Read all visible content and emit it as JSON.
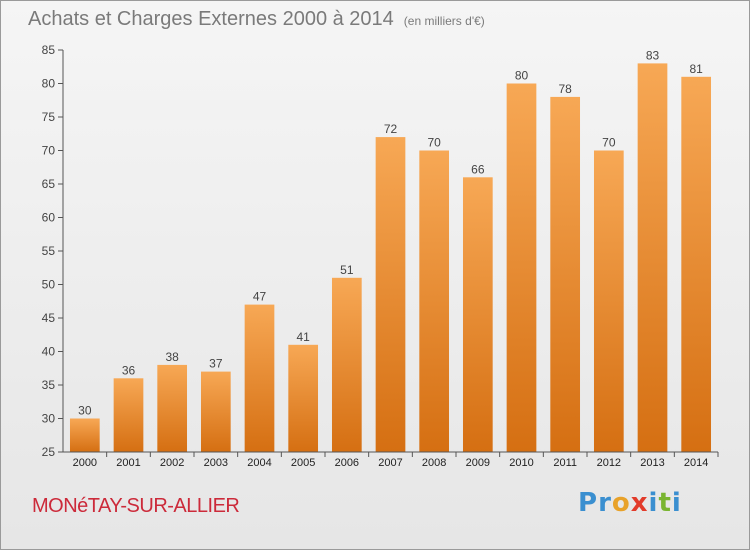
{
  "title": "Achats et Charges Externes 2000 à 2014",
  "unit_note": "(en milliers d'€)",
  "subject": "MONéTAY-SUR-ALLIER",
  "brand": {
    "letters": [
      "P",
      "r",
      "o",
      "x",
      "i",
      "t",
      "i"
    ],
    "colors": [
      "#3a8fd0",
      "#3a8fd0",
      "#e8a22a",
      "#e23b2a",
      "#3a8fd0",
      "#7ab531",
      "#3a8fd0"
    ]
  },
  "chart_data": {
    "type": "bar",
    "categories": [
      "2000",
      "2001",
      "2002",
      "2003",
      "2004",
      "2005",
      "2006",
      "2007",
      "2008",
      "2009",
      "2010",
      "2011",
      "2012",
      "2013",
      "2014"
    ],
    "values": [
      30,
      36,
      38,
      37,
      47,
      41,
      51,
      72,
      70,
      66,
      80,
      78,
      70,
      83,
      81
    ],
    "data_labels": [
      "30",
      "36",
      "38",
      "37",
      "47",
      "41",
      "51",
      "72",
      "70",
      "66",
      "80",
      "78",
      "70",
      "83",
      "81"
    ],
    "title": "Achats et Charges Externes 2000 à 2014",
    "ylim": [
      25,
      85
    ],
    "yticks": [
      25,
      30,
      35,
      40,
      45,
      50,
      55,
      60,
      65,
      70,
      75,
      80,
      85
    ],
    "ytick_labels": [
      "25",
      "30",
      "35",
      "40",
      "45",
      "50",
      "55",
      "60",
      "65",
      "70",
      "75",
      "80",
      "85"
    ],
    "grid": false,
    "bar_color": "#f08a24"
  }
}
